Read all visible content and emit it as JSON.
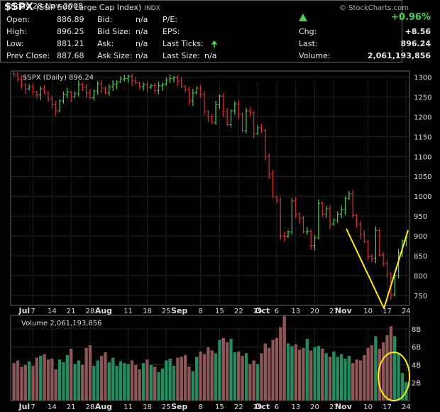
{
  "header": {
    "symbol": "$SPX",
    "name": "(S&P 500 Large Cap Index)",
    "exchange": "INDX",
    "brand": "© StockCharts.com"
  },
  "quote": {
    "date": "Friday  28-Nov-2008",
    "rows": [
      {
        "label": "Open:",
        "value": "886.89"
      },
      {
        "label": "High:",
        "value": "896.25"
      },
      {
        "label": "Low:",
        "value": "881.21"
      },
      {
        "label": "Prev Close:",
        "value": "887.68"
      }
    ],
    "bid_rows": [
      {
        "label": "Bid:",
        "value": "n/a"
      },
      {
        "label": "Bid Size:",
        "value": "n/a"
      },
      {
        "label": "Ask:",
        "value": "n/a"
      },
      {
        "label": "Ask Size:",
        "value": "n/a"
      }
    ],
    "pe_rows": [
      {
        "label": "P/E:",
        "value": ""
      },
      {
        "label": "EPS:",
        "value": ""
      },
      {
        "label": "Last Ticks:",
        "value": ""
      },
      {
        "label": "Last Size:",
        "value": "n/a"
      }
    ],
    "change_pct": "+0.96%",
    "chg_label": "Chg:",
    "chg": "+8.56",
    "last_label": "Last:",
    "last": "896.24",
    "volume_label": "Volume:",
    "volume": "2,061,193,856",
    "up_color": "#4cd34c"
  },
  "chart_data": {
    "type": "ohlc",
    "title": "$SPX (Daily) 896.24",
    "volume_title": "Volume 2,061,193,856",
    "price_ticks": [
      750,
      800,
      850,
      900,
      950,
      1000,
      1050,
      1100,
      1150,
      1200,
      1250,
      1300
    ],
    "ylim": [
      725,
      1315
    ],
    "volume_ticks": [
      "2B",
      "4B",
      "6B",
      "8B"
    ],
    "volume_tick_values": [
      2,
      4,
      6,
      8
    ],
    "volume_ylim": [
      0,
      9.5
    ],
    "x_labels": [
      {
        "label": "Jul",
        "i": 5,
        "month": true
      },
      {
        "label": "7",
        "i": 5
      },
      {
        "label": "14",
        "i": 10
      },
      {
        "label": "21",
        "i": 15
      },
      {
        "label": "28",
        "i": 20
      },
      {
        "label": "Aug",
        "i": 25,
        "month": true
      },
      {
        "label": "11",
        "i": 30
      },
      {
        "label": "18",
        "i": 35
      },
      {
        "label": "25",
        "i": 40
      },
      {
        "label": "Sep",
        "i": 45,
        "month": true
      },
      {
        "label": "8",
        "i": 49
      },
      {
        "label": "15",
        "i": 54
      },
      {
        "label": "22",
        "i": 59
      },
      {
        "label": "29",
        "i": 64
      },
      {
        "label": "Oct",
        "i": 67,
        "month": true
      },
      {
        "label": "6",
        "i": 69
      },
      {
        "label": "13",
        "i": 74
      },
      {
        "label": "20",
        "i": 79
      },
      {
        "label": "27",
        "i": 84
      },
      {
        "label": "Nov",
        "i": 88,
        "month": true
      },
      {
        "label": "10",
        "i": 93
      },
      {
        "label": "17",
        "i": 98
      },
      {
        "label": "24",
        "i": 103
      }
    ],
    "close": [
      1305,
      1295,
      1280,
      1270,
      1275,
      1262,
      1255,
      1270,
      1260,
      1245,
      1230,
      1215,
      1240,
      1256,
      1262,
      1250,
      1258,
      1282,
      1275,
      1260,
      1248,
      1265,
      1283,
      1272,
      1260,
      1275,
      1282,
      1288,
      1295,
      1296,
      1302,
      1290,
      1285,
      1276,
      1280,
      1274,
      1278,
      1266,
      1278,
      1282,
      1292,
      1296,
      1298,
      1290,
      1276,
      1268,
      1240,
      1260,
      1272,
      1255,
      1213,
      1200,
      1186,
      1230,
      1252,
      1212,
      1180,
      1215,
      1232,
      1206,
      1165,
      1215,
      1210,
      1158,
      1172,
      1166,
      1100,
      1056,
      998,
      990,
      900,
      899,
      910,
      988,
      955,
      944,
      910,
      912,
      876,
      895,
      982,
      955,
      968,
      930,
      940,
      955,
      966,
      995,
      1006,
      952,
      930,
      904,
      886,
      848,
      844,
      914,
      852,
      830,
      805,
      752,
      800,
      857,
      887,
      896
    ],
    "volume": [
      4.2,
      4.5,
      3.8,
      4.0,
      4.4,
      3.9,
      4.8,
      5.0,
      5.2,
      4.6,
      4.7,
      3.5,
      4.6,
      4.3,
      5.1,
      5.8,
      4.1,
      4.5,
      4.0,
      5.9,
      6.2,
      3.9,
      4.5,
      5.0,
      5.4,
      4.3,
      4.8,
      3.9,
      4.4,
      4.2,
      4.1,
      4.5,
      4.0,
      3.5,
      4.2,
      4.6,
      4.0,
      3.8,
      3.2,
      3.6,
      4.5,
      4.7,
      3.9,
      4.8,
      4.9,
      5.1,
      3.8,
      3.3,
      4.9,
      5.5,
      5.2,
      6.0,
      5.6,
      5.3,
      6.8,
      7.0,
      6.5,
      6.9,
      5.4,
      5.5,
      5.0,
      5.3,
      4.1,
      4.5,
      4.1,
      5.3,
      6.4,
      5.9,
      6.8,
      7.0,
      8.2,
      9.5,
      6.4,
      6.1,
      6.3,
      5.7,
      5.9,
      6.9,
      5.6,
      6.0,
      6.1,
      5.8,
      5.3,
      4.9,
      5.5,
      4.9,
      5.2,
      4.7,
      5.0,
      4.2,
      4.6,
      4.5,
      5.1,
      5.9,
      6.2,
      7.2,
      5.8,
      6.5,
      7.3,
      8.3,
      7.2,
      5.3,
      3.1,
      2.1
    ],
    "annotation_color": "#ffee00",
    "up_color": "#4cd34c",
    "down_color": "#e53030",
    "vol_up_color": "#1f8f62",
    "vol_down_color": "#8e5656"
  }
}
